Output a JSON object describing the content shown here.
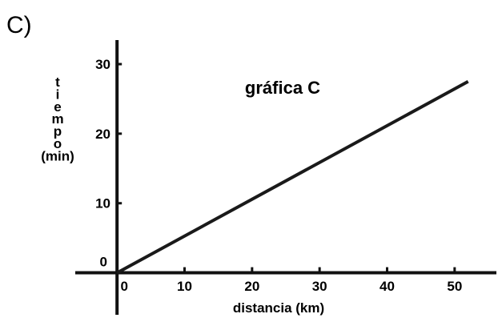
{
  "panel_label": "C)",
  "chart_data": {
    "type": "line",
    "title": "gráfica C",
    "xlabel": "distancia (km)",
    "ylabel_letters": [
      "t",
      "i",
      "e",
      "m",
      "p",
      "o"
    ],
    "ylabel_unit": "(min)",
    "xlim": [
      -1.8,
      55
    ],
    "ylim": [
      -6.5,
      33
    ],
    "x_ticks": [
      0,
      10,
      20,
      30,
      40,
      50
    ],
    "y_ticks": [
      0,
      10,
      20,
      30
    ],
    "x_tick_labels": [
      "0",
      "10",
      "20",
      "30",
      "40",
      "50"
    ],
    "y_tick_labels": [
      "0",
      "10",
      "20",
      "30"
    ],
    "grid": false,
    "series": [
      {
        "x": [
          0,
          52
        ],
        "y": [
          0,
          27.5
        ],
        "color": "#1a1a1a"
      }
    ]
  }
}
